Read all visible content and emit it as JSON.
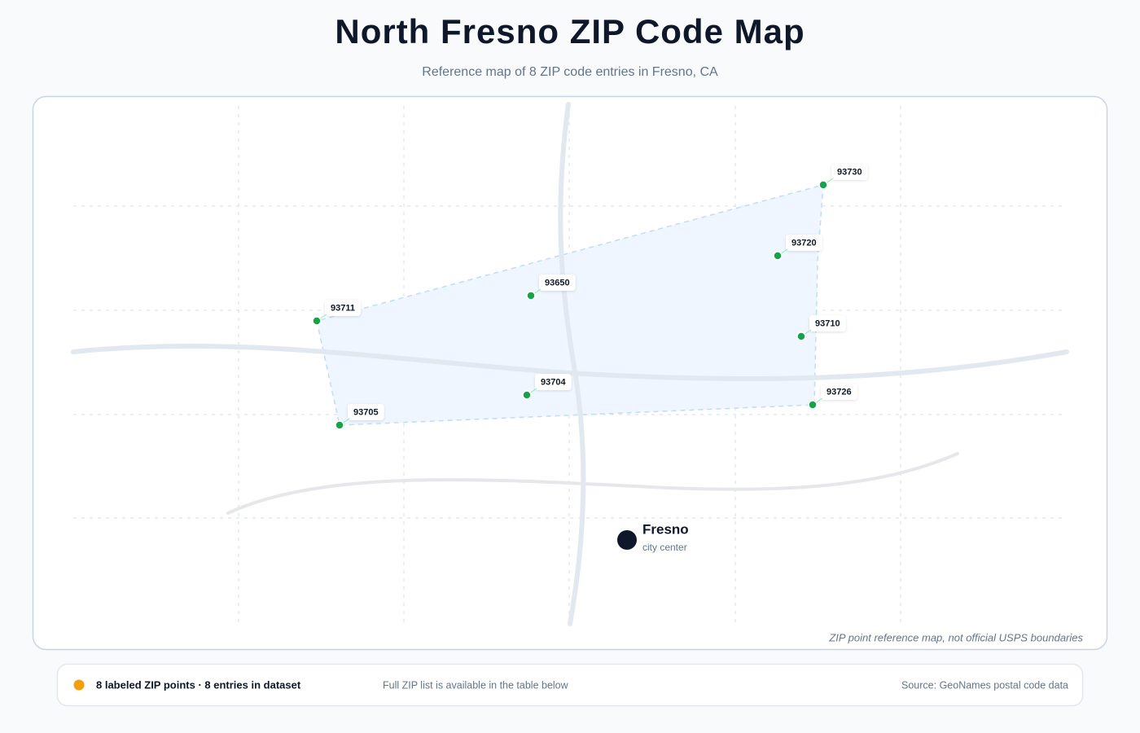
{
  "header": {
    "title": "North Fresno ZIP Code Map",
    "subtitle": "Reference map of 8 ZIP code entries in Fresno, CA"
  },
  "map": {
    "zip_points": [
      "93730",
      "93720",
      "93650",
      "93711",
      "93710",
      "93704",
      "93726",
      "93705"
    ],
    "city": {
      "name": "Fresno",
      "note": "city center"
    },
    "disclaimer": "ZIP point reference map, not official USPS boundaries"
  },
  "footer": {
    "summary": "8 labeled ZIP points · 8 entries in dataset",
    "note": "Full ZIP list is available in the table below",
    "source": "Source: GeoNames postal code data"
  }
}
